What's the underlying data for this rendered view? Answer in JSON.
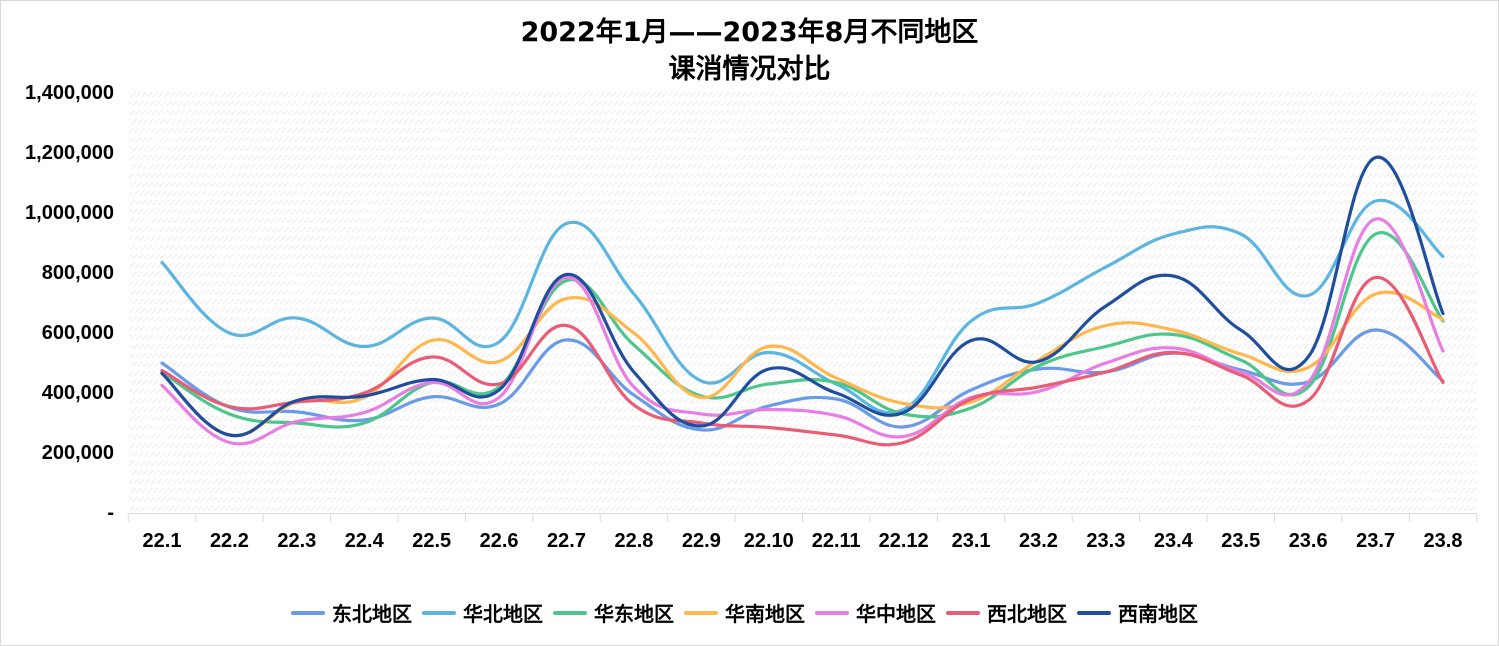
{
  "chart_data": {
    "type": "line",
    "title": "2022年1月——2023年8月不同地区课消情况对比",
    "title_lines": [
      "2022年1月——2023年8月不同地区",
      "课消情况对比"
    ],
    "xlabel": "",
    "ylabel": "",
    "ylim": [
      0,
      1400000
    ],
    "yticks": [
      "-",
      "200,000",
      "400,000",
      "600,000",
      "800,000",
      "1,000,000",
      "1,200,000",
      "1,400,000"
    ],
    "grid": false,
    "smooth": true,
    "legend_position": "bottom",
    "categories": [
      "22.1",
      "22.2",
      "22.3",
      "22.4",
      "22.5",
      "22.6",
      "22.7",
      "22.8",
      "22.9",
      "22.10",
      "22.11",
      "22.12",
      "23.1",
      "23.2",
      "23.3",
      "23.4",
      "23.5",
      "23.6",
      "23.7",
      "23.8"
    ],
    "series": [
      {
        "name": "东北地区",
        "color": "#6A9BE8",
        "values": [
          500000,
          353000,
          337000,
          310000,
          387000,
          363000,
          577000,
          393000,
          277000,
          357000,
          380000,
          287000,
          410000,
          480000,
          470000,
          533000,
          477000,
          437000,
          610000,
          440000
        ]
      },
      {
        "name": "华北地区",
        "color": "#5BB5E0",
        "values": [
          835000,
          600000,
          650000,
          555000,
          650000,
          570000,
          965000,
          730000,
          440000,
          535000,
          430000,
          345000,
          640000,
          700000,
          820000,
          930000,
          930000,
          725000,
          1040000,
          855000
        ]
      },
      {
        "name": "华东地区",
        "color": "#4DC68B",
        "values": [
          470000,
          330000,
          300000,
          300000,
          435000,
          420000,
          775000,
          560000,
          390000,
          430000,
          435000,
          330000,
          350000,
          490000,
          555000,
          595000,
          510000,
          420000,
          930000,
          640000
        ]
      },
      {
        "name": "华南地区",
        "color": "#FFB74D",
        "values": [
          465000,
          260000,
          370000,
          385000,
          575000,
          505000,
          715000,
          600000,
          385000,
          555000,
          450000,
          365000,
          370000,
          510000,
          625000,
          610000,
          530000,
          485000,
          730000,
          645000
        ]
      },
      {
        "name": "华中地区",
        "color": "#E87DE3",
        "values": [
          425000,
          235000,
          305000,
          335000,
          435000,
          385000,
          785000,
          420000,
          330000,
          345000,
          325000,
          255000,
          385000,
          405000,
          500000,
          550000,
          470000,
          435000,
          980000,
          540000
        ]
      },
      {
        "name": "西北地区",
        "color": "#E85D75",
        "values": [
          475000,
          355000,
          370000,
          400000,
          520000,
          430000,
          625000,
          360000,
          300000,
          285000,
          260000,
          235000,
          380000,
          420000,
          470000,
          535000,
          460000,
          375000,
          785000,
          435000
        ]
      },
      {
        "name": "西南地区",
        "color": "#1F4E9F",
        "values": [
          465000,
          260000,
          375000,
          390000,
          445000,
          410000,
          795000,
          470000,
          290000,
          480000,
          400000,
          335000,
          575000,
          505000,
          690000,
          790000,
          610000,
          520000,
          1185000,
          665000
        ]
      }
    ]
  }
}
